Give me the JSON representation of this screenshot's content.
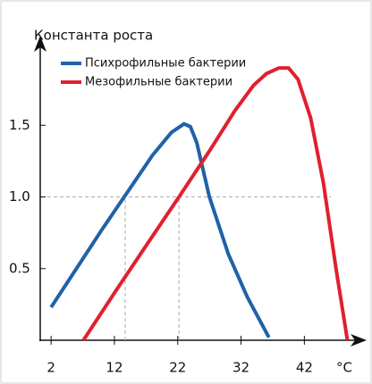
{
  "chart_data": {
    "type": "line",
    "ylabel": "Константа роста",
    "xlabel": "°C",
    "xlim": [
      0,
      50
    ],
    "ylim": [
      0,
      2.05
    ],
    "xticks": [
      2,
      12,
      22,
      32,
      42
    ],
    "yticks": [
      0.5,
      {
        "value": 1,
        "label": "1.0"
      },
      1.5
    ],
    "legend": "upper left",
    "reference_lines": {
      "y": [
        1
      ],
      "x": [
        13.7,
        22.2
      ]
    },
    "series": [
      {
        "name": "Психрофильные бактерии",
        "color": "#1f62a8",
        "x": [
          2,
          6,
          10,
          14,
          18,
          21,
          23,
          24,
          25,
          27,
          30,
          33,
          36.4
        ],
        "values": [
          0.23,
          0.5,
          0.77,
          1.03,
          1.29,
          1.45,
          1.51,
          1.49,
          1.38,
          1.0,
          0.6,
          0.3,
          0.02
        ]
      },
      {
        "name": "Мезофильные бактерии",
        "color": "#e0202e",
        "x": [
          7.1,
          12,
          17,
          22.2,
          27,
          31,
          34,
          36,
          38,
          39.5,
          41,
          43,
          45,
          47,
          48.8
        ],
        "values": [
          0,
          0.33,
          0.66,
          1.0,
          1.32,
          1.6,
          1.78,
          1.86,
          1.9,
          1.9,
          1.82,
          1.55,
          1.1,
          0.5,
          0
        ]
      }
    ]
  }
}
